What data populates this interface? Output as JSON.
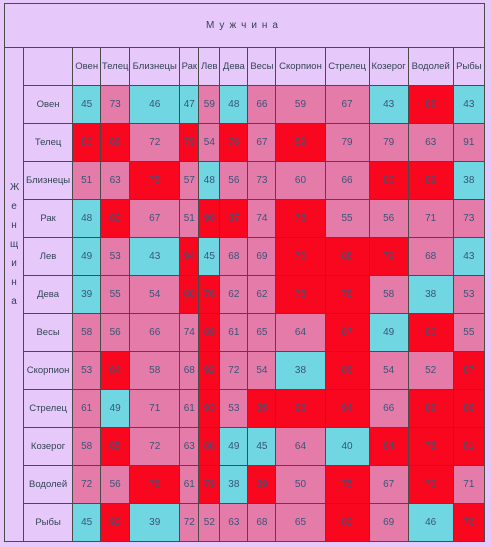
{
  "header": {
    "title": "Мужчина",
    "side_title": "Женщина"
  },
  "table": {
    "columns": [
      "Овен",
      "Телец",
      "Близнецы",
      "Рак",
      "Лев",
      "Дева",
      "Весы",
      "Скорпион",
      "Стрелец",
      "Козерог",
      "Водолей",
      "Рыбы"
    ],
    "row_labels": [
      "Овен",
      "Телец",
      "Близнецы",
      "Рак",
      "Лев",
      "Дева",
      "Весы",
      "Скорпион",
      "Стрелец",
      "Козерог",
      "Водолей",
      "Рыбы"
    ],
    "rows": [
      [
        45,
        73,
        46,
        47,
        59,
        48,
        66,
        59,
        67,
        43,
        89,
        43
      ],
      [
        80,
        89,
        72,
        79,
        54,
        76,
        67,
        89,
        79,
        79,
        63,
        91
      ],
      [
        51,
        63,
        75,
        57,
        48,
        56,
        73,
        60,
        66,
        80,
        89,
        38
      ],
      [
        48,
        82,
        67,
        51,
        90,
        87,
        74,
        78,
        55,
        56,
        71,
        73
      ],
      [
        49,
        53,
        43,
        94,
        45,
        68,
        69,
        76,
        88,
        79,
        68,
        43
      ],
      [
        39,
        55,
        54,
        80,
        76,
        62,
        62,
        78,
        78,
        58,
        38,
        53
      ],
      [
        58,
        56,
        66,
        74,
        89,
        61,
        65,
        64,
        87,
        49,
        80,
        55
      ],
      [
        53,
        84,
        58,
        68,
        92,
        72,
        54,
        38,
        86,
        54,
        52,
        87
      ],
      [
        61,
        49,
        71,
        61,
        93,
        53,
        85,
        95,
        94,
        66,
        89,
        88
      ],
      [
        58,
        85,
        72,
        63,
        88,
        49,
        45,
        64,
        40,
        84,
        78,
        81
      ],
      [
        72,
        56,
        78,
        61,
        79,
        38,
        89,
        50,
        75,
        67,
        76,
        71
      ],
      [
        45,
        92,
        39,
        72,
        52,
        63,
        68,
        65,
        82,
        69,
        46,
        76
      ]
    ],
    "colors": [
      [
        "#6fd6e2",
        "#e47ba9",
        "#6fd6e2",
        "#6fd6e2",
        "#e47ba9",
        "#6fd6e2",
        "#e47ba9",
        "#e47ba9",
        "#e47ba9",
        "#6fd6e2",
        "#f8071e",
        "#6fd6e2"
      ],
      [
        "#f8071e",
        "#f8071e",
        "#e47ba9",
        "#f8071e",
        "#e47ba9",
        "#f8071e",
        "#e47ba9",
        "#f8071e",
        "#e47ba9",
        "#e47ba9",
        "#e47ba9",
        "#e47ba9"
      ],
      [
        "#e47ba9",
        "#e47ba9",
        "#f8071e",
        "#e47ba9",
        "#6fd6e2",
        "#e47ba9",
        "#e47ba9",
        "#e47ba9",
        "#e47ba9",
        "#f8071e",
        "#f8071e",
        "#6fd6e2"
      ],
      [
        "#6fd6e2",
        "#f8071e",
        "#e47ba9",
        "#e47ba9",
        "#f8071e",
        "#f8071e",
        "#e47ba9",
        "#f8071e",
        "#e47ba9",
        "#e47ba9",
        "#e47ba9",
        "#e47ba9"
      ],
      [
        "#6fd6e2",
        "#e47ba9",
        "#6fd6e2",
        "#f8071e",
        "#6fd6e2",
        "#e47ba9",
        "#e47ba9",
        "#f8071e",
        "#f8071e",
        "#f8071e",
        "#e47ba9",
        "#6fd6e2"
      ],
      [
        "#6fd6e2",
        "#e47ba9",
        "#e47ba9",
        "#f8071e",
        "#f8071e",
        "#e47ba9",
        "#e47ba9",
        "#f8071e",
        "#f8071e",
        "#e47ba9",
        "#6fd6e2",
        "#e47ba9"
      ],
      [
        "#e47ba9",
        "#e47ba9",
        "#e47ba9",
        "#e47ba9",
        "#f8071e",
        "#e47ba9",
        "#e47ba9",
        "#e47ba9",
        "#f8071e",
        "#6fd6e2",
        "#f8071e",
        "#e47ba9"
      ],
      [
        "#e47ba9",
        "#f8071e",
        "#e47ba9",
        "#e47ba9",
        "#f8071e",
        "#e47ba9",
        "#e47ba9",
        "#6fd6e2",
        "#f8071e",
        "#e47ba9",
        "#e47ba9",
        "#f8071e"
      ],
      [
        "#e47ba9",
        "#6fd6e2",
        "#e47ba9",
        "#e47ba9",
        "#f8071e",
        "#e47ba9",
        "#f8071e",
        "#f8071e",
        "#f8071e",
        "#e47ba9",
        "#f8071e",
        "#f8071e"
      ],
      [
        "#e47ba9",
        "#f8071e",
        "#e47ba9",
        "#e47ba9",
        "#f8071e",
        "#6fd6e2",
        "#6fd6e2",
        "#e47ba9",
        "#6fd6e2",
        "#f8071e",
        "#f8071e",
        "#f8071e"
      ],
      [
        "#e47ba9",
        "#e47ba9",
        "#f8071e",
        "#e47ba9",
        "#f8071e",
        "#6fd6e2",
        "#f8071e",
        "#e47ba9",
        "#f8071e",
        "#e47ba9",
        "#f8071e",
        "#e47ba9"
      ],
      [
        "#6fd6e2",
        "#f8071e",
        "#6fd6e2",
        "#e47ba9",
        "#e47ba9",
        "#e47ba9",
        "#e47ba9",
        "#e47ba9",
        "#f8071e",
        "#e47ba9",
        "#6fd6e2",
        "#f8071e"
      ]
    ]
  }
}
